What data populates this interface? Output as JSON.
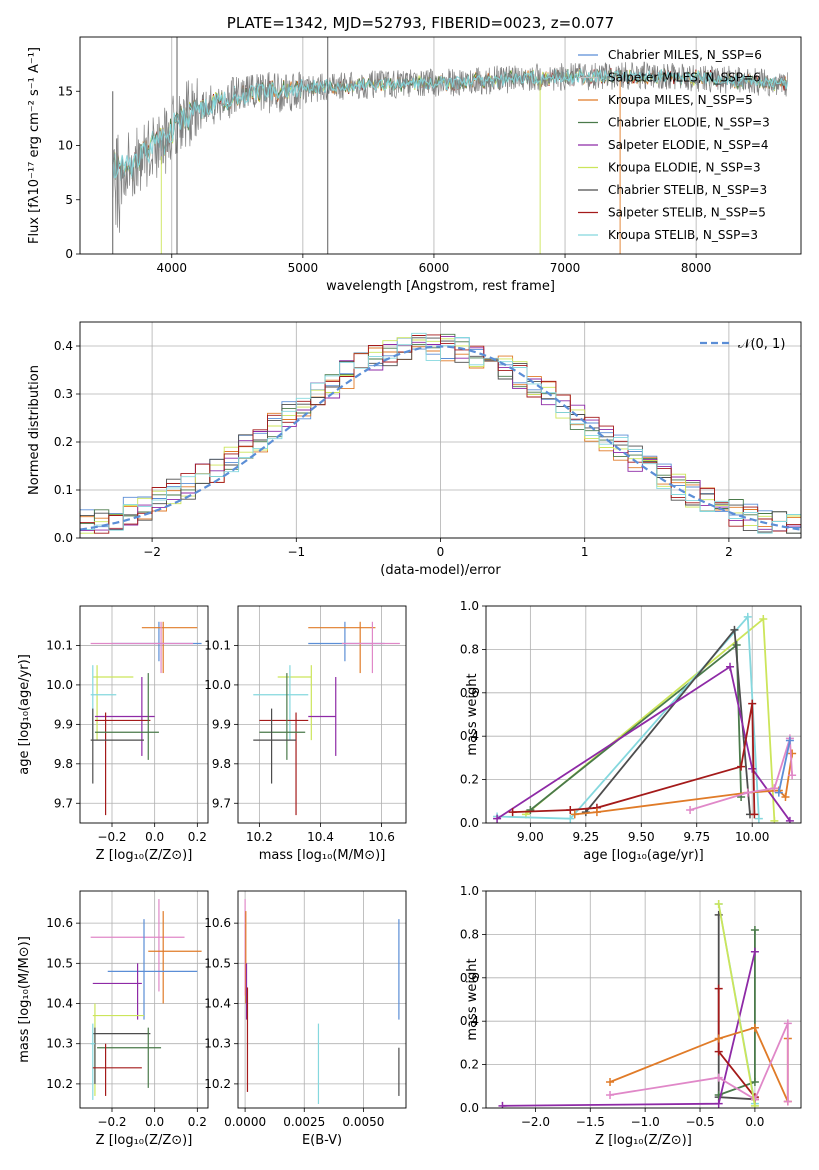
{
  "colors": {
    "chabrier_miles": "#5b8ed6",
    "salpeter_miles": "#c0c0c0",
    "kroupa_miles": "#e07b28",
    "chabrier_elodie": "#4a7a4a",
    "salpeter_elodie": "#8e2aa6",
    "kroupa_elodie": "#cce55a",
    "chabrier_stelib": "#4d4d4d",
    "salpeter_stelib": "#a41a1a",
    "kroupa_stelib": "#85d8de",
    "spectrum": "#808080",
    "pink": "#e088c8",
    "normal_curve": "#5b8ed6"
  },
  "chart_data": [
    {
      "id": "spectrum",
      "type": "line",
      "title": "PLATE=1342, MJD=52793, FIBERID=0023, z=0.077",
      "xlabel": "wavelength [Angstrom, rest frame]",
      "ylabel": "Flux [fλ10⁻¹⁷ erg cm⁻² s⁻¹ A⁻¹]",
      "xlim": [
        3300,
        8800
      ],
      "ylim": [
        0,
        20
      ],
      "xticks": [
        "4000",
        "5000",
        "6000",
        "7000",
        "8000"
      ],
      "yticks": [
        "0",
        "5",
        "10",
        "15"
      ],
      "xtick_values": [
        4000,
        5000,
        6000,
        7000,
        8000
      ],
      "ytick_values": [
        0,
        5,
        10,
        15
      ],
      "continuum": [
        [
          3550,
          7.8
        ],
        [
          3700,
          8.2
        ],
        [
          3850,
          9.8
        ],
        [
          3950,
          10.5
        ],
        [
          4050,
          12.5
        ],
        [
          4200,
          13.2
        ],
        [
          4400,
          14.2
        ],
        [
          4600,
          14.8
        ],
        [
          4800,
          15.0
        ],
        [
          5000,
          15.2
        ],
        [
          5200,
          15.4
        ],
        [
          5500,
          15.6
        ],
        [
          5800,
          15.7
        ],
        [
          6100,
          15.8
        ],
        [
          6400,
          16.0
        ],
        [
          6700,
          16.2
        ],
        [
          7000,
          16.3
        ],
        [
          7300,
          16.4
        ],
        [
          7600,
          16.4
        ],
        [
          7900,
          16.3
        ],
        [
          8200,
          16.1
        ],
        [
          8500,
          15.8
        ],
        [
          8700,
          15.6
        ]
      ],
      "legend": [
        "Chabrier MILES, N_SSP=6",
        "Salpeter MILES, N_SSP=6",
        "Kroupa MILES, N_SSP=5",
        "Chabrier ELODIE, N_SSP=3",
        "Salpeter ELODIE, N_SSP=4",
        "Kroupa ELODIE, N_SSP=3",
        "Chabrier STELIB, N_SSP=3",
        "Salpeter STELIB, N_SSP=5",
        "Kroupa STELIB, N_SSP=3"
      ]
    },
    {
      "id": "residuals",
      "type": "line",
      "xlabel": "(data-model)/error",
      "ylabel": "Normed distribution",
      "xlim": [
        -2.5,
        2.5
      ],
      "ylim": [
        0,
        0.45
      ],
      "xticks": [
        "−2",
        "−1",
        "0",
        "1",
        "2"
      ],
      "yticks": [
        "0.0",
        "0.1",
        "0.2",
        "0.3",
        "0.4"
      ],
      "xtick_values": [
        -2,
        -1,
        0,
        1,
        2
      ],
      "ytick_values": [
        0,
        0.1,
        0.2,
        0.3,
        0.4
      ],
      "legend": [
        "𝒩(0, 1)"
      ]
    },
    {
      "id": "age_vs_Z",
      "type": "scatter",
      "xlabel": "Z [log₁₀(Z/Z⊙)]",
      "ylabel": "age [log₁₀(age/yr)]",
      "xlim": [
        -0.35,
        0.25
      ],
      "ylim": [
        9.65,
        10.2
      ],
      "xticks": [
        "−0.2",
        "0.0",
        "0.2"
      ],
      "yticks": [
        "9.7",
        "9.8",
        "9.9",
        "10.0",
        "10.1"
      ],
      "xtick_values": [
        -0.2,
        0.0,
        0.2
      ],
      "ytick_values": [
        9.7,
        9.8,
        9.9,
        10.0,
        10.1
      ],
      "points": [
        {
          "s": "chabrier_miles",
          "x": 0.02,
          "y": 10.105,
          "x0": -0.2,
          "x1": 0.22,
          "y0": 10.06,
          "y1": 10.16
        },
        {
          "s": "kroupa_miles",
          "x": 0.04,
          "y": 10.145,
          "x0": -0.06,
          "x1": 0.2,
          "y0": 10.03,
          "y1": 10.16
        },
        {
          "s": "pink",
          "x": 0.03,
          "y": 10.105,
          "x0": -0.3,
          "x1": 0.18,
          "y0": 10.03,
          "y1": 10.16
        },
        {
          "s": "kroupa_elodie",
          "x": -0.27,
          "y": 10.02,
          "x0": -0.29,
          "x1": -0.1,
          "y0": 9.86,
          "y1": 10.05
        },
        {
          "s": "kroupa_stelib",
          "x": -0.29,
          "y": 9.975,
          "x0": -0.3,
          "x1": -0.18,
          "y0": 9.86,
          "y1": 10.05
        },
        {
          "s": "salpeter_elodie",
          "x": -0.06,
          "y": 9.92,
          "x0": -0.28,
          "x1": 0.0,
          "y0": 9.82,
          "y1": 10.02
        },
        {
          "s": "salpeter_stelib",
          "x": -0.23,
          "y": 9.91,
          "x0": -0.28,
          "x1": -0.02,
          "y0": 9.67,
          "y1": 9.93
        },
        {
          "s": "chabrier_elodie",
          "x": -0.03,
          "y": 9.88,
          "x0": -0.28,
          "x1": 0.02,
          "y0": 9.81,
          "y1": 10.03
        },
        {
          "s": "chabrier_stelib",
          "x": -0.29,
          "y": 9.86,
          "x0": -0.3,
          "x1": -0.05,
          "y0": 9.75,
          "y1": 9.94
        }
      ]
    },
    {
      "id": "age_vs_mass",
      "type": "scatter",
      "xlabel": "mass [log₁₀(M/M⊙)]",
      "xlim": [
        10.13,
        10.68
      ],
      "ylim": [
        9.65,
        10.2
      ],
      "xticks": [
        "10.2",
        "10.4",
        "10.6"
      ],
      "yticks": [
        "9.7",
        "9.8",
        "9.9",
        "10.0",
        "10.1"
      ],
      "xtick_values": [
        10.2,
        10.4,
        10.6
      ],
      "ytick_values": [
        9.7,
        9.8,
        9.9,
        10.0,
        10.1
      ],
      "points": [
        {
          "s": "chabrier_miles",
          "x": 10.48,
          "y": 10.105,
          "x0": 10.36,
          "x1": 10.61,
          "y0": 10.06,
          "y1": 10.16
        },
        {
          "s": "kroupa_miles",
          "x": 10.53,
          "y": 10.145,
          "x0": 10.36,
          "x1": 10.58,
          "y0": 10.03,
          "y1": 10.16
        },
        {
          "s": "pink",
          "x": 10.57,
          "y": 10.105,
          "x0": 10.47,
          "x1": 10.66,
          "y0": 10.03,
          "y1": 10.16
        },
        {
          "s": "kroupa_elodie",
          "x": 10.37,
          "y": 10.02,
          "x0": 10.26,
          "x1": 10.37,
          "y0": 9.86,
          "y1": 10.05
        },
        {
          "s": "kroupa_stelib",
          "x": 10.3,
          "y": 9.975,
          "x0": 10.18,
          "x1": 10.36,
          "y0": 9.86,
          "y1": 10.05
        },
        {
          "s": "salpeter_elodie",
          "x": 10.45,
          "y": 9.92,
          "x0": 10.36,
          "x1": 10.45,
          "y0": 9.82,
          "y1": 10.02
        },
        {
          "s": "salpeter_stelib",
          "x": 10.32,
          "y": 9.91,
          "x0": 10.2,
          "x1": 10.36,
          "y0": 9.67,
          "y1": 9.93
        },
        {
          "s": "chabrier_elodie",
          "x": 10.29,
          "y": 9.88,
          "x0": 10.2,
          "x1": 10.35,
          "y0": 9.81,
          "y1": 10.03
        },
        {
          "s": "chabrier_stelib",
          "x": 10.24,
          "y": 9.86,
          "x0": 10.18,
          "x1": 10.32,
          "y0": 9.75,
          "y1": 9.94
        }
      ]
    },
    {
      "id": "weight_vs_age",
      "type": "line",
      "xlabel": "age [log₁₀(age/yr)]",
      "ylabel": "mass weight",
      "xlim": [
        8.8,
        10.22
      ],
      "ylim": [
        0,
        1.0
      ],
      "xticks": [
        "9.00",
        "9.25",
        "9.50",
        "9.75",
        "10.00"
      ],
      "yticks": [
        "0.0",
        "0.2",
        "0.4",
        "0.6",
        "0.8",
        "1.0"
      ],
      "xtick_values": [
        9.0,
        9.25,
        9.5,
        9.75,
        10.0
      ],
      "ytick_values": [
        0,
        0.2,
        0.4,
        0.6,
        0.8,
        1.0
      ],
      "series": [
        {
          "s": "kroupa_elodie",
          "points": [
            [
              8.98,
              0.04
            ],
            [
              10.05,
              0.94
            ],
            [
              10.1,
              0.01
            ]
          ]
        },
        {
          "s": "chabrier_elodie",
          "points": [
            [
              9.0,
              0.06
            ],
            [
              9.93,
              0.82
            ],
            [
              9.95,
              0.12
            ]
          ]
        },
        {
          "s": "kroupa_stelib",
          "points": [
            [
              8.85,
              0.03
            ],
            [
              9.18,
              0.02
            ],
            [
              9.98,
              0.95
            ],
            [
              10.03,
              0.02
            ]
          ]
        },
        {
          "s": "chabrier_stelib",
          "points": [
            [
              9.25,
              0.05
            ],
            [
              9.92,
              0.89
            ],
            [
              9.99,
              0.04
            ]
          ]
        },
        {
          "s": "salpeter_elodie",
          "points": [
            [
              8.85,
              0.02
            ],
            [
              9.9,
              0.72
            ],
            [
              10.0,
              0.25
            ],
            [
              10.17,
              0.01
            ]
          ]
        },
        {
          "s": "salpeter_stelib",
          "points": [
            [
              8.92,
              0.05
            ],
            [
              9.18,
              0.06
            ],
            [
              9.3,
              0.07
            ],
            [
              9.95,
              0.26
            ],
            [
              10.0,
              0.55
            ],
            [
              10.01,
              0.04
            ]
          ]
        },
        {
          "s": "kroupa_miles",
          "points": [
            [
              9.2,
              0.04
            ],
            [
              9.3,
              0.05
            ],
            [
              9.98,
              0.14
            ],
            [
              10.12,
              0.15
            ],
            [
              10.15,
              0.12
            ],
            [
              10.18,
              0.32
            ]
          ]
        },
        {
          "s": "pink",
          "points": [
            [
              9.72,
              0.06
            ],
            [
              9.98,
              0.14
            ],
            [
              10.1,
              0.16
            ],
            [
              10.17,
              0.39
            ],
            [
              10.18,
              0.22
            ]
          ]
        },
        {
          "s": "chabrier_miles",
          "points": [
            [
              10.12,
              0.14
            ],
            [
              10.17,
              0.38
            ]
          ]
        }
      ]
    },
    {
      "id": "mass_vs_Z",
      "type": "scatter",
      "xlabel": "Z [log₁₀(Z/Z⊙)]",
      "ylabel": "mass [log₁₀(M/M⊙)]",
      "xlim": [
        -0.35,
        0.25
      ],
      "ylim": [
        10.14,
        10.68
      ],
      "xticks": [
        "−0.2",
        "0.0",
        "0.2"
      ],
      "yticks": [
        "10.2",
        "10.3",
        "10.4",
        "10.5",
        "10.6"
      ],
      "xtick_values": [
        -0.2,
        0.0,
        0.2
      ],
      "ytick_values": [
        10.2,
        10.3,
        10.4,
        10.5,
        10.6
      ],
      "points": [
        {
          "s": "pink",
          "x": 0.02,
          "y": 10.565,
          "x0": -0.3,
          "x1": 0.14,
          "y0": 10.43,
          "y1": 10.66
        },
        {
          "s": "kroupa_miles",
          "x": 0.04,
          "y": 10.53,
          "x0": -0.03,
          "x1": 0.22,
          "y0": 10.4,
          "y1": 10.63
        },
        {
          "s": "chabrier_miles",
          "x": -0.05,
          "y": 10.48,
          "x0": -0.22,
          "x1": 0.2,
          "y0": 10.36,
          "y1": 10.61
        },
        {
          "s": "salpeter_elodie",
          "x": -0.08,
          "y": 10.45,
          "x0": -0.29,
          "x1": -0.06,
          "y0": 10.36,
          "y1": 10.5
        },
        {
          "s": "kroupa_elodie",
          "x": -0.28,
          "y": 10.37,
          "x0": -0.29,
          "x1": -0.05,
          "y0": 10.17,
          "y1": 10.4
        },
        {
          "s": "chabrier_stelib",
          "x": -0.28,
          "y": 10.325,
          "x0": -0.29,
          "x1": -0.02,
          "y0": 10.2,
          "y1": 10.34
        },
        {
          "s": "chabrier_elodie",
          "x": -0.03,
          "y": 10.29,
          "x0": -0.27,
          "x1": 0.03,
          "y0": 10.19,
          "y1": 10.34
        },
        {
          "s": "kroupa_stelib",
          "x": -0.29,
          "y": 10.3,
          "x0": -0.3,
          "x1": -0.28,
          "y0": 10.16,
          "y1": 10.35
        },
        {
          "s": "salpeter_stelib",
          "x": -0.23,
          "y": 10.24,
          "x0": -0.29,
          "x1": -0.06,
          "y0": 10.17,
          "y1": 10.3
        }
      ]
    },
    {
      "id": "mass_vs_EBV",
      "type": "scatter",
      "xlabel": "E(B-V)",
      "xlim": [
        -0.0003,
        0.0068
      ],
      "ylim": [
        10.14,
        10.68
      ],
      "xticks": [
        "0.0000",
        "0.0025",
        "0.0050"
      ],
      "yticks": [
        "10.2",
        "10.3",
        "10.4",
        "10.5",
        "10.6"
      ],
      "xtick_values": [
        0.0,
        0.0025,
        0.005
      ],
      "ytick_values": [
        10.2,
        10.3,
        10.4,
        10.5,
        10.6
      ],
      "points": [
        {
          "s": "pink",
          "x": 0.0,
          "y": 10.57,
          "x0": 0.0,
          "x1": 0.0,
          "y0": 10.42,
          "y1": 10.66
        },
        {
          "s": "kroupa_miles",
          "x": 3e-05,
          "y": 10.53,
          "x0": 3e-05,
          "x1": 3e-05,
          "y0": 10.4,
          "y1": 10.63
        },
        {
          "s": "salpeter_elodie",
          "x": 6e-05,
          "y": 10.45,
          "x0": 6e-05,
          "x1": 6e-05,
          "y0": 10.36,
          "y1": 10.5
        },
        {
          "s": "salpeter_stelib",
          "x": 0.0001,
          "y": 10.3,
          "x0": 0.0001,
          "x1": 0.0001,
          "y0": 10.18,
          "y1": 10.44
        },
        {
          "s": "kroupa_stelib",
          "x": 0.0031,
          "y": 10.25,
          "x0": 0.0031,
          "x1": 0.0031,
          "y0": 10.15,
          "y1": 10.35
        },
        {
          "s": "chabrier_miles",
          "x": 0.0065,
          "y": 10.48,
          "x0": 0.0065,
          "x1": 0.0065,
          "y0": 10.36,
          "y1": 10.61
        },
        {
          "s": "chabrier_stelib",
          "x": 0.0065,
          "y": 10.22,
          "x0": 0.0065,
          "x1": 0.0065,
          "y0": 10.17,
          "y1": 10.29
        }
      ]
    },
    {
      "id": "weight_vs_Z",
      "type": "line",
      "xlabel": "Z [log₁₀(Z/Z⊙)]",
      "ylabel": "mass weight",
      "xlim": [
        -2.45,
        0.42
      ],
      "ylim": [
        0,
        1.0
      ],
      "xticks": [
        "−2.0",
        "−1.5",
        "−1.0",
        "−0.5",
        "0.0"
      ],
      "yticks": [
        "0.0",
        "0.2",
        "0.4",
        "0.6",
        "0.8",
        "1.0"
      ],
      "xtick_values": [
        -2.0,
        -1.5,
        -1.0,
        -0.5,
        0.0
      ],
      "ytick_values": [
        0,
        0.2,
        0.4,
        0.6,
        0.8,
        1.0
      ],
      "series": [
        {
          "s": "kroupa_stelib",
          "points": [
            [
              -0.33,
              0.94
            ],
            [
              0.0,
              0.02
            ]
          ]
        },
        {
          "s": "chabrier_stelib",
          "points": [
            [
              -0.33,
              0.89
            ],
            [
              -0.33,
              0.05
            ],
            [
              0.0,
              0.04
            ]
          ]
        },
        {
          "s": "chabrier_elodie",
          "points": [
            [
              0.0,
              0.82
            ],
            [
              0.0,
              0.12
            ],
            [
              -0.33,
              0.06
            ]
          ]
        },
        {
          "s": "salpeter_elodie",
          "points": [
            [
              -2.3,
              0.01
            ],
            [
              -0.33,
              0.02
            ],
            [
              0.0,
              0.72
            ]
          ]
        },
        {
          "s": "salpeter_stelib",
          "points": [
            [
              -0.33,
              0.55
            ],
            [
              -0.33,
              0.26
            ],
            [
              0.0,
              0.05
            ],
            [
              0.0,
              0.04
            ]
          ]
        },
        {
          "s": "kroupa_miles",
          "points": [
            [
              -1.32,
              0.12
            ],
            [
              -0.33,
              0.32
            ],
            [
              0.0,
              0.37
            ],
            [
              0.3,
              0.03
            ],
            [
              0.3,
              0.32
            ]
          ]
        },
        {
          "s": "pink",
          "points": [
            [
              -1.32,
              0.06
            ],
            [
              -0.33,
              0.14
            ],
            [
              0.0,
              0.04
            ],
            [
              0.3,
              0.39
            ],
            [
              0.3,
              0.03
            ]
          ]
        },
        {
          "s": "kroupa_elodie",
          "points": [
            [
              -0.33,
              0.94
            ],
            [
              0.0,
              0.01
            ]
          ]
        }
      ]
    }
  ]
}
